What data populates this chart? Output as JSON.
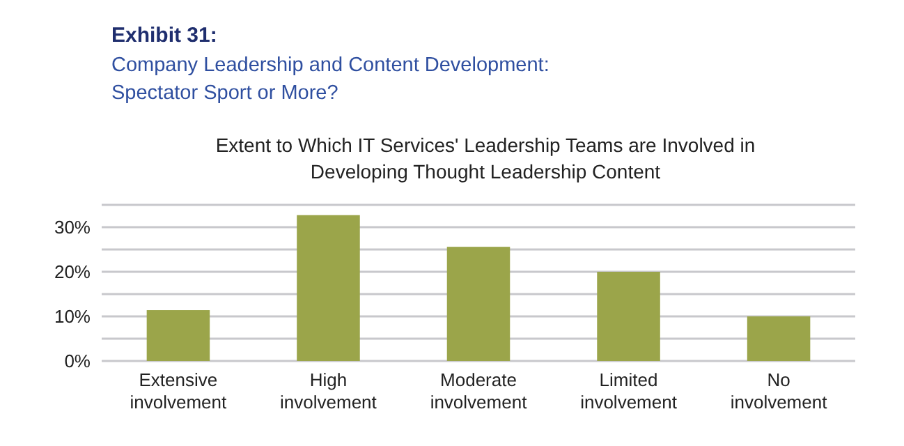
{
  "chart_data": {
    "type": "bar",
    "title": "Exhibit 31:",
    "subtitle": "Company Leadership and Content Development:\nSpectator Sport or More?",
    "annotations": [
      "Extent to Which IT Services' Leadership Teams are Involved in\nDeveloping Thought Leadership Content"
    ],
    "categories": [
      "Extensive\ninvolvement",
      "High\ninvolvement",
      "Moderate\ninvolvement",
      "Limited\ninvolvement",
      "No\ninvolvement"
    ],
    "values": [
      11.4,
      32.7,
      25.6,
      20.0,
      10.0
    ],
    "color": "#9ba54a",
    "ylim": [
      0,
      35
    ],
    "yticks": [
      {
        "value": 0,
        "label": "0%"
      },
      {
        "value": 5,
        "label": null
      },
      {
        "value": 10,
        "label": "10%"
      },
      {
        "value": 15,
        "label": null
      },
      {
        "value": 20,
        "label": "20%"
      },
      {
        "value": 25,
        "label": null
      },
      {
        "value": 30,
        "label": "30%"
      },
      {
        "value": 35,
        "label": null
      }
    ],
    "grid": true
  }
}
